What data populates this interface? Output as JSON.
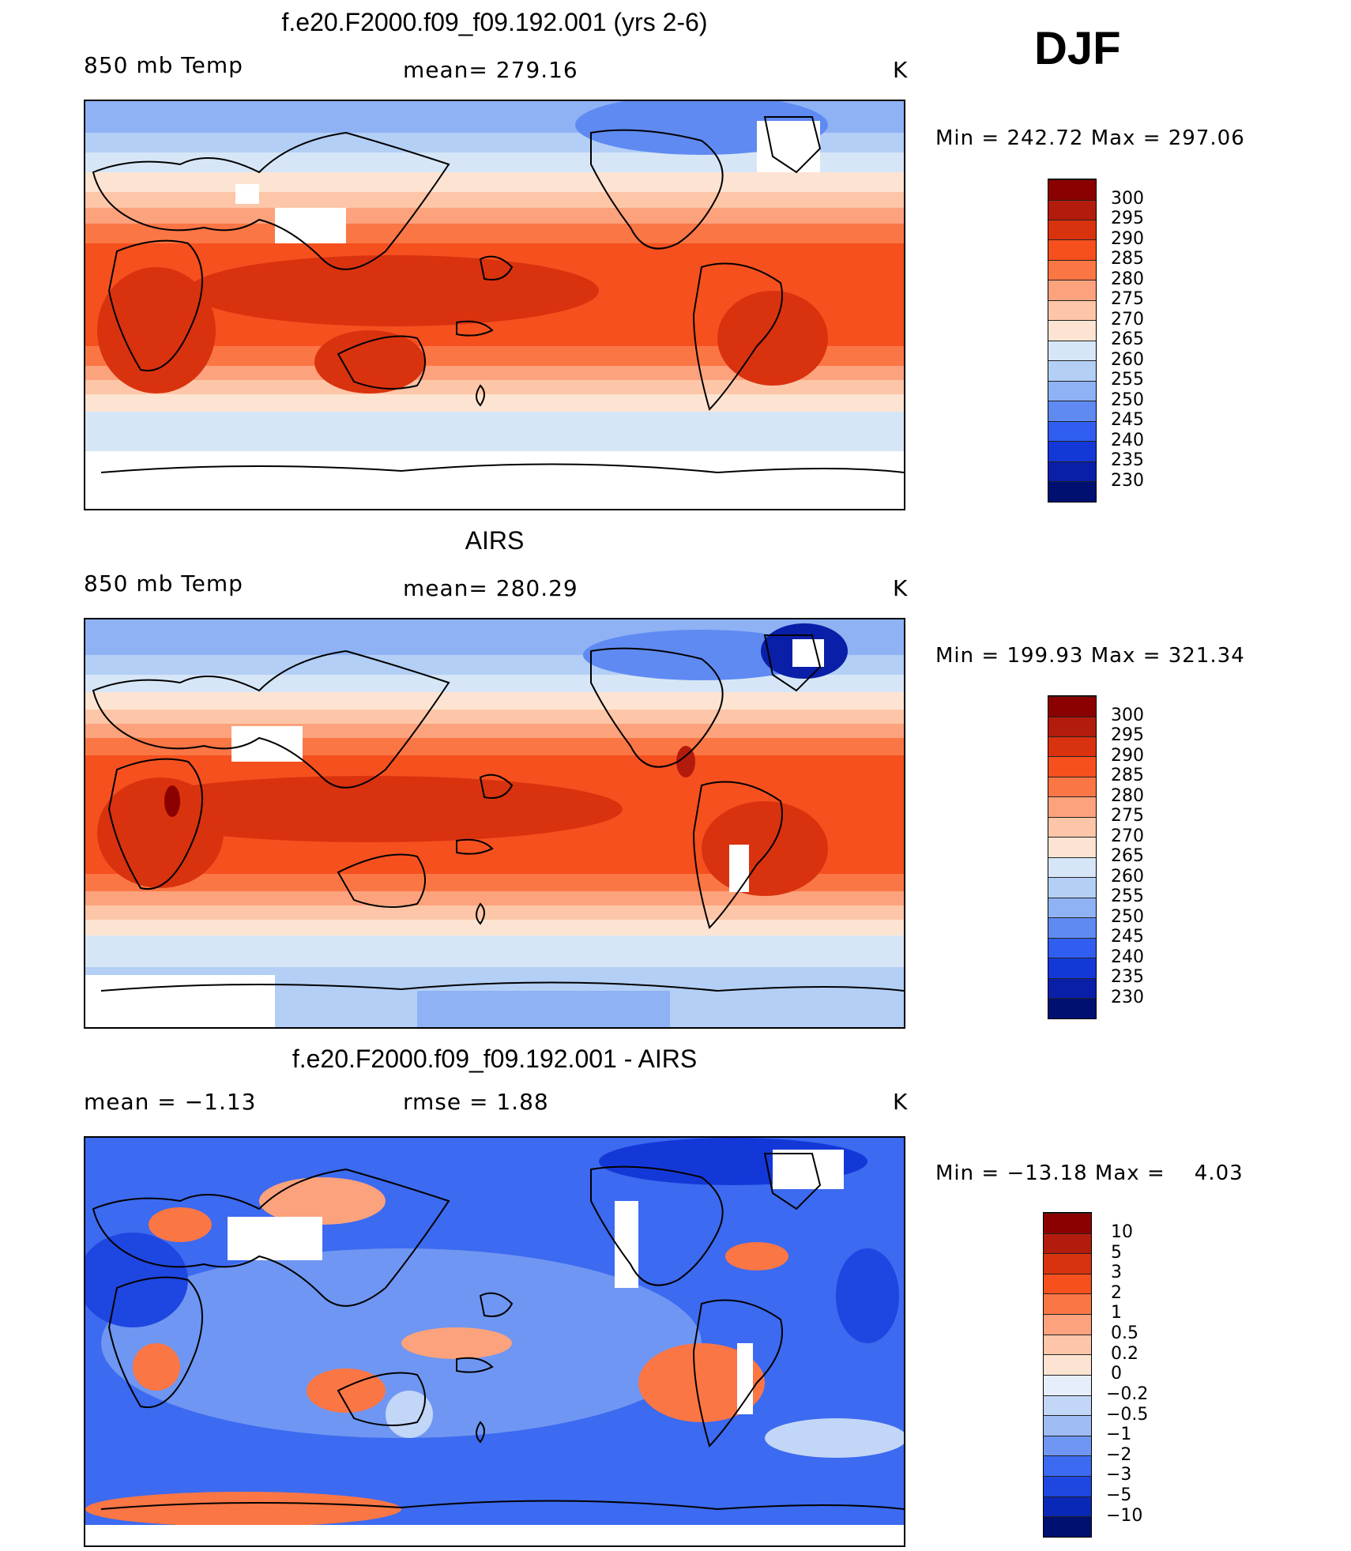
{
  "season": "DJF",
  "panels": [
    {
      "title": "f.e20.F2000.f09_f09.192.001 (yrs 2-6)",
      "left_label": "850 mb Temp",
      "center_label": "mean= 279.16",
      "units": "K",
      "minmax": "Min = 242.72 Max = 297.06",
      "colorbar_labels": [
        "300",
        "295",
        "290",
        "285",
        "280",
        "275",
        "270",
        "265",
        "260",
        "255",
        "250",
        "245",
        "240",
        "235",
        "230"
      ]
    },
    {
      "title": "AIRS",
      "left_label": "850 mb Temp",
      "center_label": "mean= 280.29",
      "units": "K",
      "minmax": "Min = 199.93 Max = 321.34",
      "colorbar_labels": [
        "300",
        "295",
        "290",
        "285",
        "280",
        "275",
        "270",
        "265",
        "260",
        "255",
        "250",
        "245",
        "240",
        "235",
        "230"
      ]
    },
    {
      "title": "f.e20.F2000.f09_f09.192.001 - AIRS",
      "left_label": "mean =   −1.13",
      "center_label": "rmse =    1.88",
      "units": "K",
      "minmax": "Min = −13.18 Max =    4.03",
      "colorbar_labels": [
        "10",
        "5",
        "3",
        "2",
        "1",
        "0.5",
        "0.2",
        "0",
        "−0.2",
        "−0.5",
        "−1",
        "−2",
        "−3",
        "−5",
        "−10"
      ]
    }
  ],
  "colors": {
    "temp_scale": [
      "#8b0000",
      "#b31b0c",
      "#d9320f",
      "#f5501e",
      "#fb7645",
      "#fca27c",
      "#fdc6a8",
      "#fde4d2",
      "#d6e6f7",
      "#b4cff5",
      "#8fb2f5",
      "#5f8af2",
      "#2f5ef0",
      "#1438d8",
      "#0a1fa8",
      "#001070"
    ],
    "diff_scale": [
      "#8b0000",
      "#b31b0c",
      "#d9320f",
      "#f5501e",
      "#fb7645",
      "#fca27c",
      "#fdc6a8",
      "#fde4d2",
      "#e7eefb",
      "#c2d6f7",
      "#9fbcf5",
      "#6f96f2",
      "#3c6af0",
      "#1e46e0",
      "#0a28b8",
      "#001070"
    ]
  }
}
